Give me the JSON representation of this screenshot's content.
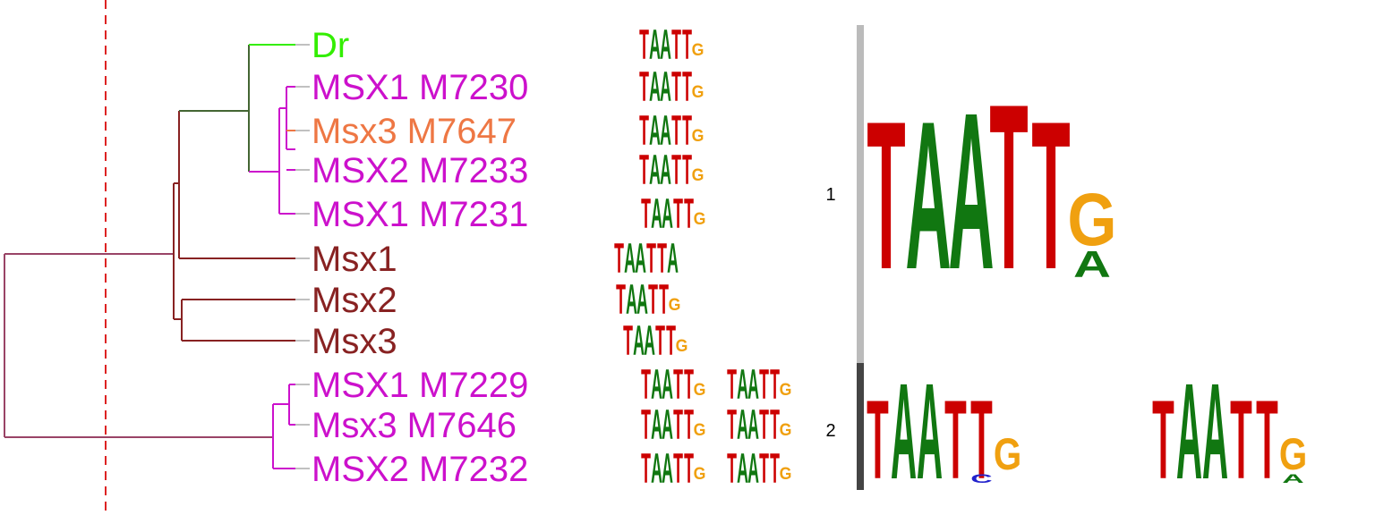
{
  "colors": {
    "drosophila": "#33ee00",
    "human": "#cc11cc",
    "mouse_motif": "#ee7744",
    "mouse": "#882222",
    "branch_green": "#446633",
    "branch_mixed": "#994466",
    "cluster1_bar": "#bbbbbb",
    "cluster2_bar": "#444444",
    "cutoff": "#dd2222",
    "base_T": "#cc0000",
    "base_A": "#117711",
    "base_G": "#f0a010",
    "base_C": "#2222cc"
  },
  "leaves": [
    {
      "label": "Dr",
      "color_key": "drosophila",
      "motif": "TAATTG"
    },
    {
      "label": "MSX1 M7230",
      "color_key": "human",
      "motif": "TAATTG"
    },
    {
      "label": "Msx3 M7647",
      "color_key": "mouse_motif",
      "motif": "TAATTG"
    },
    {
      "label": "MSX2 M7233",
      "color_key": "human",
      "motif": "TAATTG"
    },
    {
      "label": "MSX1 M7231",
      "color_key": "human",
      "motif": "TAATTG"
    },
    {
      "label": "Msx1",
      "color_key": "mouse",
      "motif": "TAATTA"
    },
    {
      "label": "Msx2",
      "color_key": "mouse",
      "motif": "TAATTG"
    },
    {
      "label": "Msx3",
      "color_key": "mouse",
      "motif": "TAATTG"
    },
    {
      "label": "MSX1 M7229",
      "color_key": "human",
      "motif": "TAATTG...TAATTG"
    },
    {
      "label": "Msx3 M7646",
      "color_key": "human",
      "motif": "TAATTG...TAATTG"
    },
    {
      "label": "MSX2 M7232",
      "color_key": "human",
      "motif": "TAATTG...TAATTG"
    }
  ],
  "clusters": [
    {
      "id": "1",
      "consensus": [
        "T",
        "A",
        "A",
        "T",
        "T",
        "G"
      ],
      "sub": [
        null,
        null,
        null,
        null,
        null,
        "A"
      ]
    },
    {
      "id": "2",
      "consensus": [
        "T",
        "A",
        "A",
        "T",
        "T",
        "G",
        "",
        "",
        "",
        "",
        "",
        "T",
        "A",
        "A",
        "T",
        "T",
        "G"
      ],
      "sub": [
        null,
        null,
        null,
        null,
        "C",
        null,
        null,
        null,
        null,
        null,
        null,
        null,
        null,
        null,
        null,
        null,
        "A"
      ]
    }
  ]
}
